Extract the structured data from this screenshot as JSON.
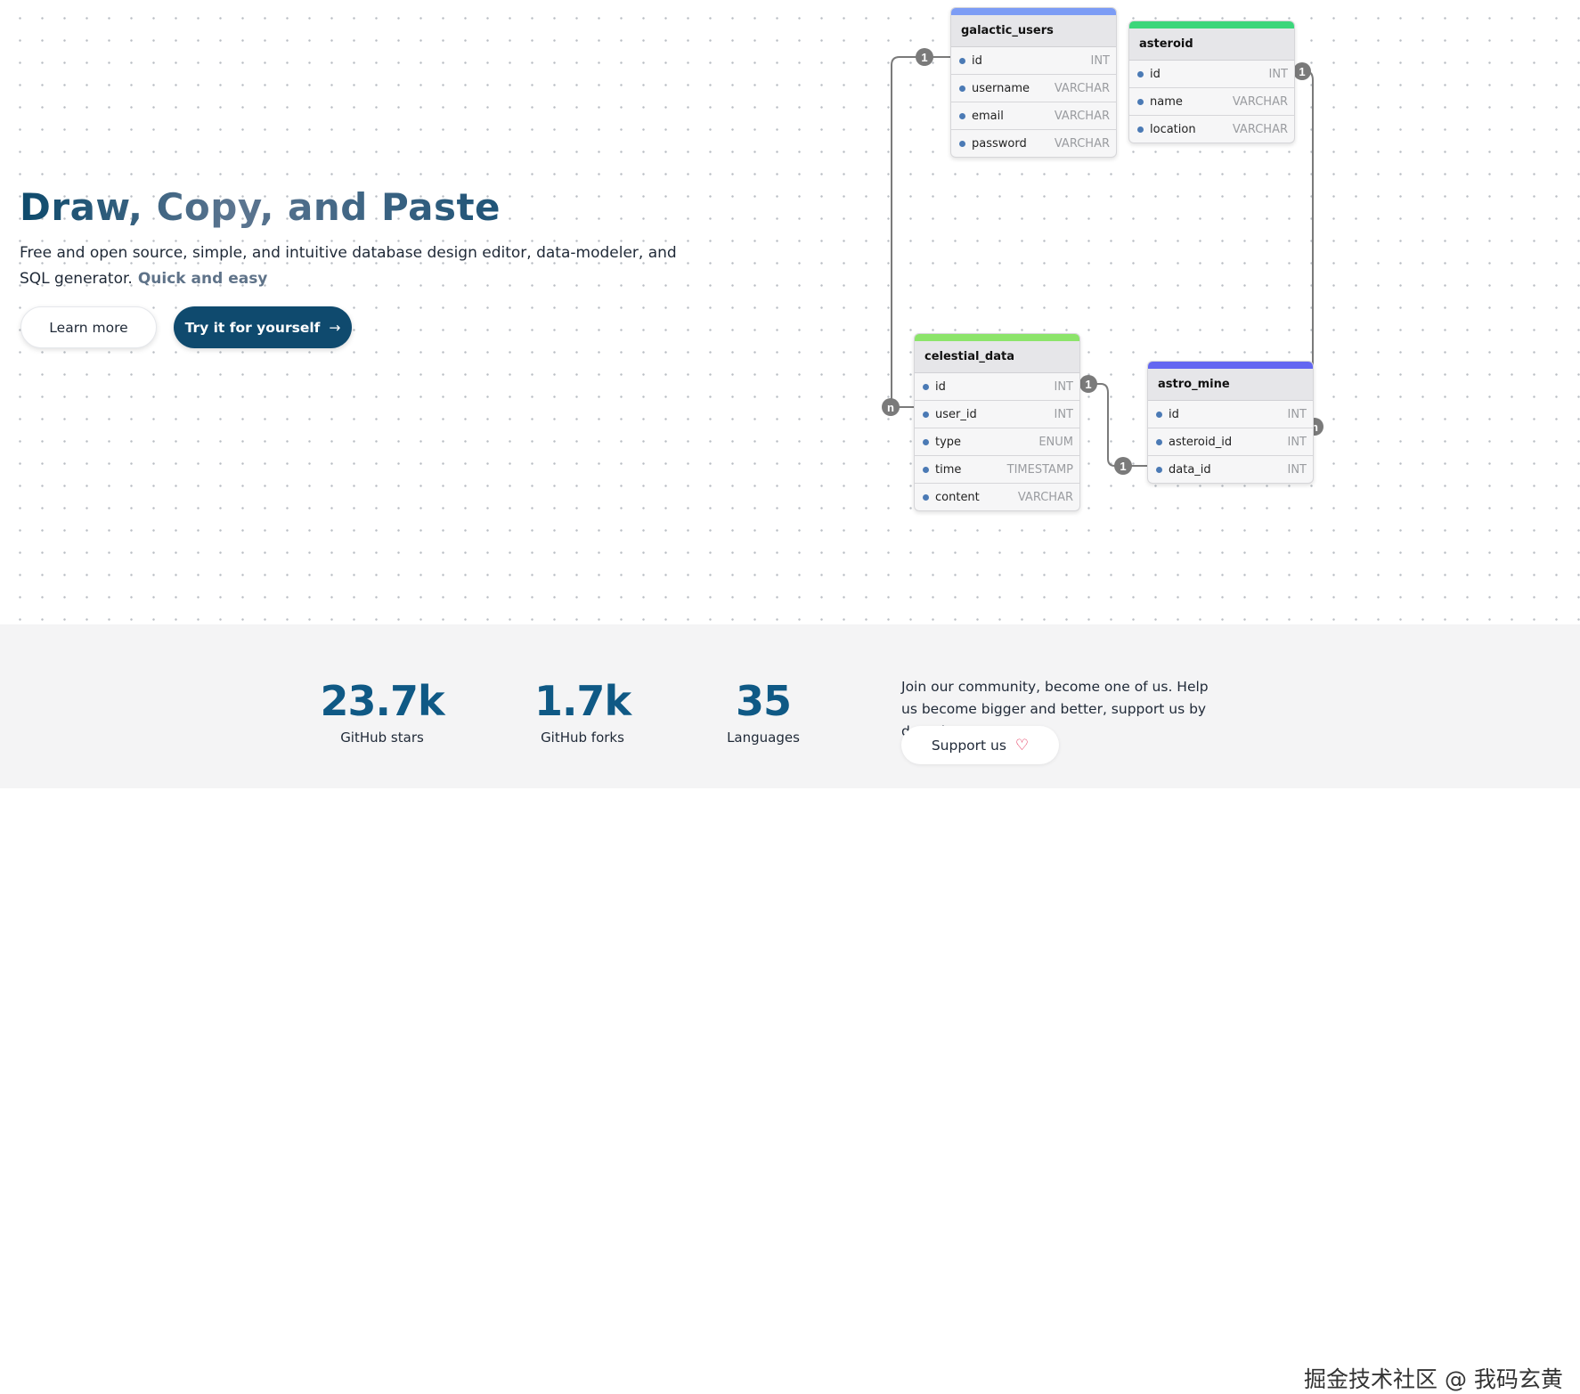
{
  "hero": {
    "title": "Draw, Copy, and Paste",
    "description": "Free and open source, simple, and intuitive database design editor, data-modeler, and SQL generator.",
    "highlight": "Quick and easy",
    "learn_more_label": "Learn more",
    "try_label": "Try it for yourself",
    "try_icon": "arrow-right-icon"
  },
  "diagram": {
    "tables": [
      {
        "name": "galactic_users",
        "color": "#7c9cf5",
        "fields": [
          {
            "name": "id",
            "type": "INT"
          },
          {
            "name": "username",
            "type": "VARCHAR"
          },
          {
            "name": "email",
            "type": "VARCHAR"
          },
          {
            "name": "password",
            "type": "VARCHAR"
          }
        ]
      },
      {
        "name": "asteroid",
        "color": "#3bd67a",
        "fields": [
          {
            "name": "id",
            "type": "INT"
          },
          {
            "name": "name",
            "type": "VARCHAR"
          },
          {
            "name": "location",
            "type": "VARCHAR"
          }
        ]
      },
      {
        "name": "celestial_data",
        "color": "#8ce46a",
        "fields": [
          {
            "name": "id",
            "type": "INT"
          },
          {
            "name": "user_id",
            "type": "INT"
          },
          {
            "name": "type",
            "type": "ENUM"
          },
          {
            "name": "time",
            "type": "TIMESTAMP"
          },
          {
            "name": "content",
            "type": "VARCHAR"
          }
        ]
      },
      {
        "name": "astro_mine",
        "color": "#6366f1",
        "fields": [
          {
            "name": "id",
            "type": "INT"
          },
          {
            "name": "asteroid_id",
            "type": "INT"
          },
          {
            "name": "data_id",
            "type": "INT"
          }
        ]
      }
    ],
    "relationships": [
      {
        "from": "galactic_users.id",
        "to": "celestial_data.user_id",
        "from_label": "1",
        "to_label": "n"
      },
      {
        "from": "asteroid.id",
        "to": "astro_mine.asteroid_id",
        "from_label": "1",
        "to_label": "n"
      },
      {
        "from": "celestial_data.id",
        "to": "astro_mine.data_id",
        "from_label": "1",
        "to_label": "1"
      }
    ]
  },
  "stats": [
    {
      "value": "23.7k",
      "label": "GitHub stars"
    },
    {
      "value": "1.7k",
      "label": "GitHub forks"
    },
    {
      "value": "35",
      "label": "Languages"
    }
  ],
  "community": {
    "text": "Join our community, become one of us. Help us become bigger and better, support us by donating.",
    "support_label": "Support us",
    "support_icon": "heart-icon"
  },
  "overlay": {
    "watermark": "掘金技术社区 @ 我码玄黄"
  }
}
